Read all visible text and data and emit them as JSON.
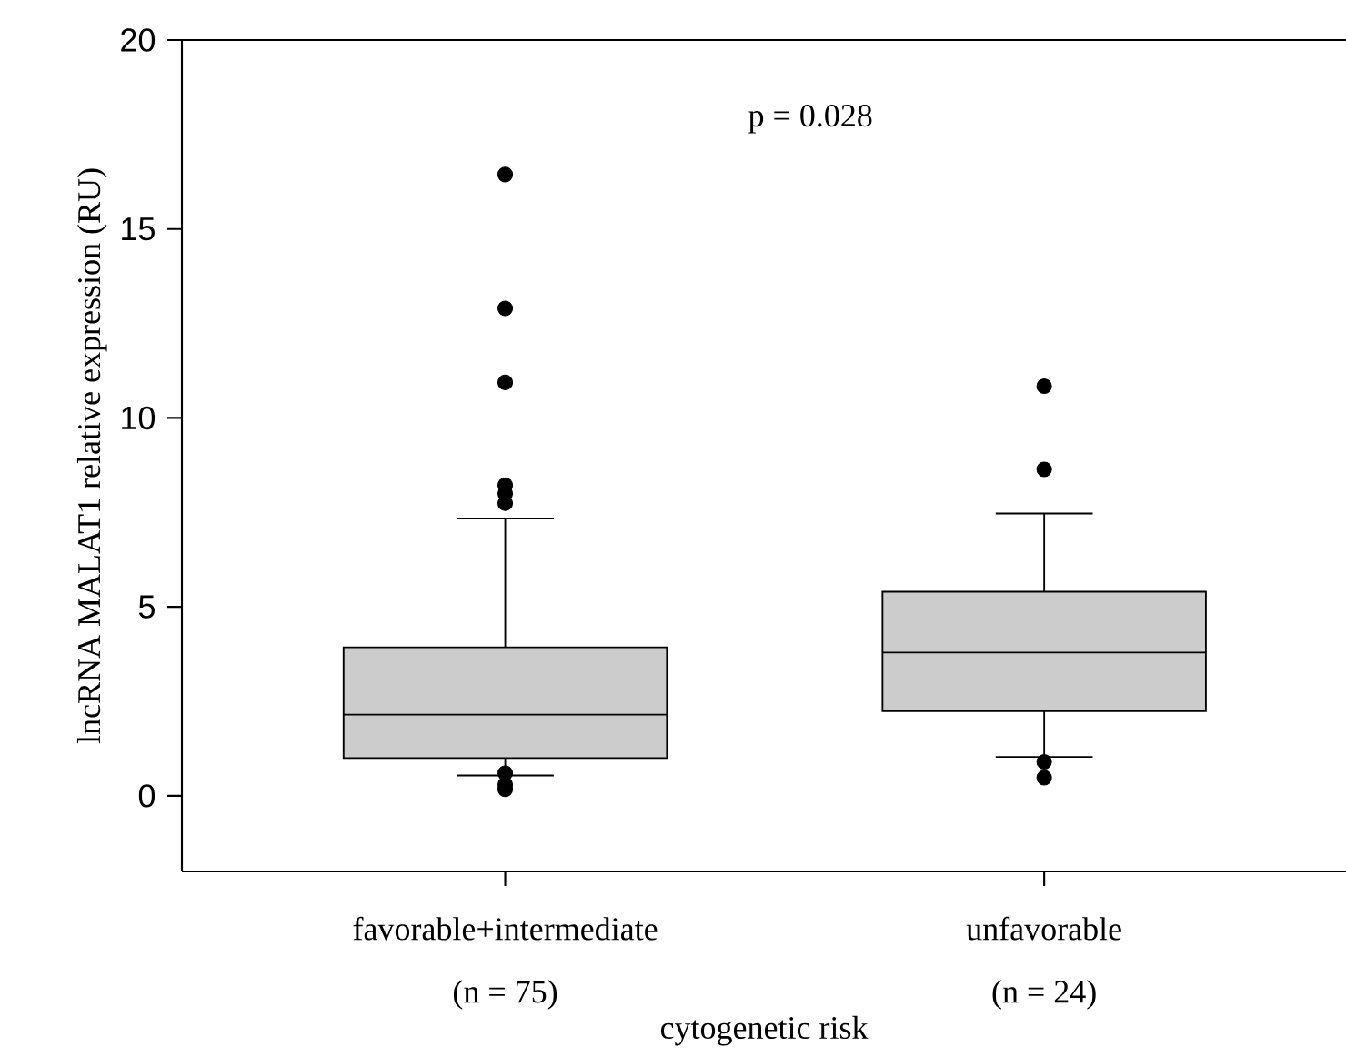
{
  "chart_data": {
    "type": "box",
    "categories": [
      "favorable+intermediate",
      "unfavorable"
    ],
    "boxes": [
      {
        "low": 0.54,
        "q1": 1.0,
        "median": 2.15,
        "q3": 3.93,
        "high": 7.34,
        "outliers": [
          16.44,
          12.9,
          10.94,
          8.22,
          8.0,
          7.74,
          0.6,
          0.3,
          0.17
        ]
      },
      {
        "low": 1.03,
        "q1": 2.24,
        "median": 3.79,
        "q3": 5.4,
        "high": 7.47,
        "outliers": [
          10.84,
          8.64,
          0.9,
          0.48
        ]
      }
    ],
    "color": "#cccccc",
    "ylim": [
      -2,
      20
    ],
    "yticks": [
      0,
      5,
      10,
      15,
      20
    ],
    "xlabel": "cytogenetic risk",
    "ylabel": "lncRNA MALAT1 relative expression (RU)",
    "annotations": [
      "p = 0.028",
      "(n = 75)",
      "(n = 24)"
    ],
    "grid": false
  }
}
